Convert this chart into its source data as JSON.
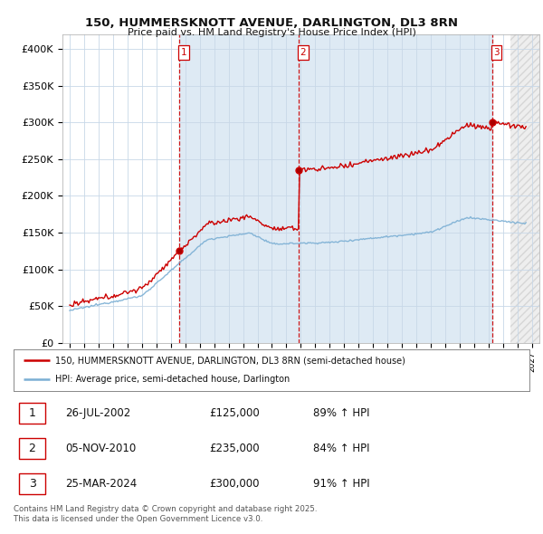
{
  "title1": "150, HUMMERSKNOTT AVENUE, DARLINGTON, DL3 8RN",
  "title2": "Price paid vs. HM Land Registry's House Price Index (HPI)",
  "legend_line1": "150, HUMMERSKNOTT AVENUE, DARLINGTON, DL3 8RN (semi-detached house)",
  "legend_line2": "HPI: Average price, semi-detached house, Darlington",
  "sale_color": "#cc0000",
  "hpi_color": "#7bafd4",
  "vline_color": "#cc0000",
  "bg_color": "#ffffff",
  "grid_color": "#c8d8e8",
  "shade_color": "#deeaf4",
  "table_rows": [
    {
      "num": 1,
      "date": "26-JUL-2002",
      "price": "£125,000",
      "hpi": "89% ↑ HPI"
    },
    {
      "num": 2,
      "date": "05-NOV-2010",
      "price": "£235,000",
      "hpi": "84% ↑ HPI"
    },
    {
      "num": 3,
      "date": "25-MAR-2024",
      "price": "£300,000",
      "hpi": "91% ↑ HPI"
    }
  ],
  "footnote": "Contains HM Land Registry data © Crown copyright and database right 2025.\nThis data is licensed under the Open Government Licence v3.0.",
  "sale_dates": [
    2002.565,
    2010.843,
    2024.23
  ],
  "sale_prices": [
    125000,
    235000,
    300000
  ],
  "ylim": [
    0,
    420000
  ],
  "xlim_start": 1994.5,
  "xlim_end": 2027.5
}
